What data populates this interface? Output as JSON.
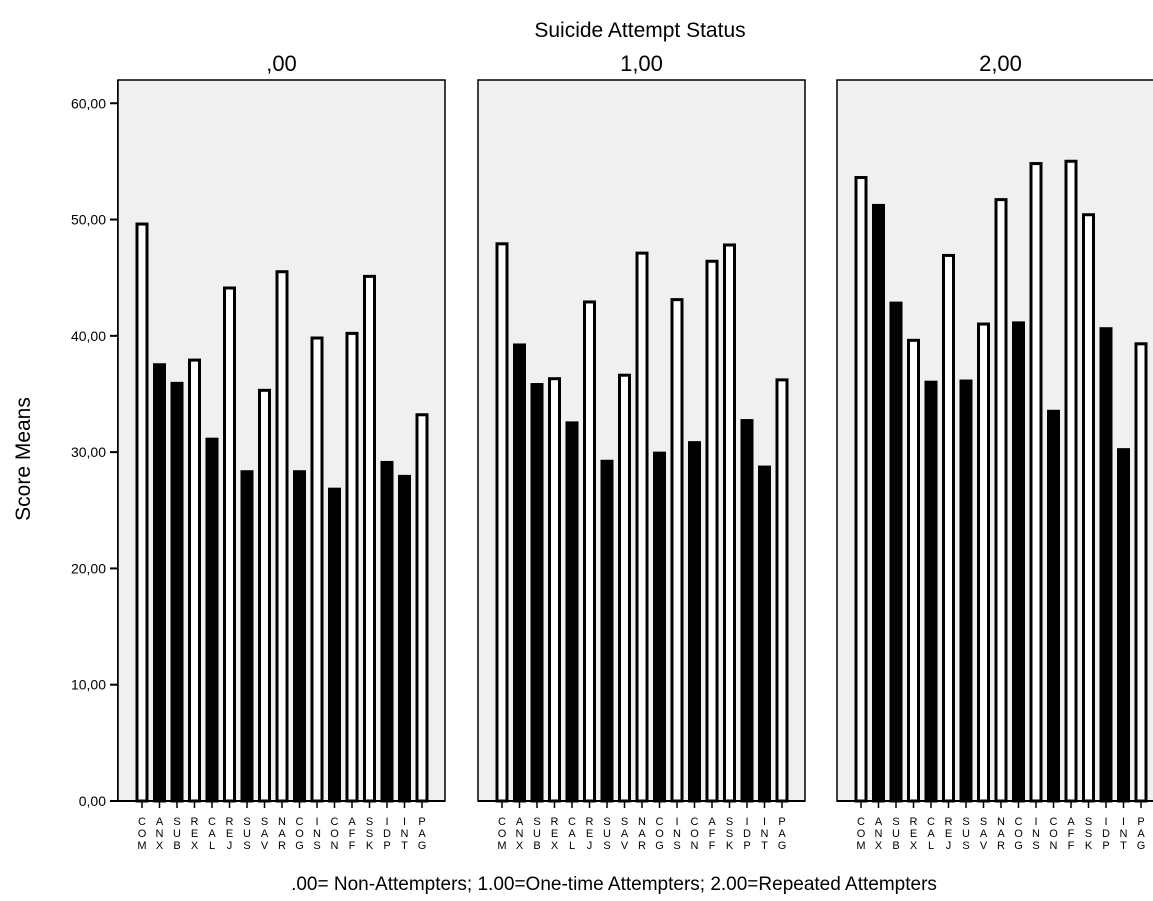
{
  "chart_data": {
    "type": "bar",
    "title": "Suicide Attempt Status",
    "ylabel": "Score Means",
    "caption": ".00= Non-Attempters; 1.00=One-time Attempters; 2.00=Repeated Attempters",
    "ylim": [
      0,
      62
    ],
    "yticks": [
      0,
      10,
      20,
      30,
      40,
      50,
      60
    ],
    "ytick_labels": [
      "0,00",
      "10,00",
      "20,00",
      "30,00",
      "40,00",
      "50,00",
      "60,00"
    ],
    "grid": false,
    "categories": [
      "COM",
      "ANX",
      "SUB",
      "REX",
      "CAL",
      "REJ",
      "SUS",
      "SAV",
      "NAR",
      "COG",
      "INS",
      "CON",
      "AFF",
      "SSK",
      "IDP",
      "INT",
      "PAG"
    ],
    "bar_fill_pattern": [
      "white",
      "black",
      "black",
      "white",
      "black",
      "white",
      "black",
      "white",
      "white",
      "black",
      "white",
      "black",
      "white",
      "white",
      "black",
      "black",
      "white"
    ],
    "colors": {
      "panel_background": "#f0f0f0",
      "white_bar": "#ffffff",
      "black_bar": "#000000"
    },
    "panels": [
      {
        "label": ",00",
        "values": [
          49.7,
          37.6,
          36.0,
          38.0,
          31.2,
          44.2,
          28.4,
          35.4,
          45.6,
          28.4,
          39.9,
          26.9,
          40.3,
          45.2,
          29.2,
          28.0,
          33.3
        ]
      },
      {
        "label": "1,00",
        "values": [
          48.0,
          39.3,
          35.9,
          36.4,
          32.6,
          43.0,
          29.3,
          36.7,
          47.2,
          30.0,
          43.2,
          30.9,
          46.5,
          47.9,
          32.8,
          28.8,
          36.3
        ]
      },
      {
        "label": "2,00",
        "values": [
          53.7,
          51.3,
          42.9,
          39.7,
          36.1,
          47.0,
          36.2,
          41.1,
          51.8,
          41.2,
          54.9,
          33.6,
          55.1,
          50.5,
          40.7,
          30.3,
          39.4
        ]
      }
    ]
  }
}
